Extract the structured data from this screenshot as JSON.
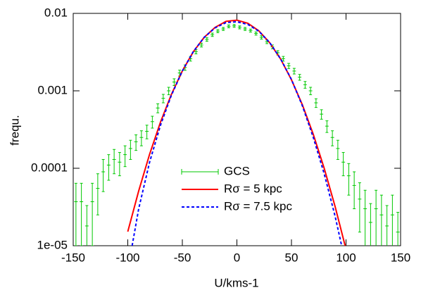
{
  "chart_data": {
    "type": "line",
    "xlabel": "U/kms-1",
    "ylabel": "frequ.",
    "xlim": [
      -150,
      150
    ],
    "xticks": [
      -150,
      -100,
      -50,
      0,
      50,
      100,
      150
    ],
    "ylim": [
      1e-05,
      0.01
    ],
    "log_y": true,
    "yticks": [
      {
        "value": 1e-05,
        "label": "1e-05"
      },
      0.0001,
      0.001,
      0.01
    ],
    "grid": false,
    "series": [
      {
        "name": "GCS",
        "color": "#00c800",
        "style": "errorbars",
        "x": [
          -147.5,
          -142.5,
          -137.5,
          -132.5,
          -127.5,
          -122.5,
          -117.5,
          -112.5,
          -107.5,
          -102.5,
          -97.5,
          -92.5,
          -87.5,
          -82.5,
          -77.5,
          -72.5,
          -67.5,
          -62.5,
          -57.5,
          -52.5,
          -47.5,
          -42.5,
          -37.5,
          -32.5,
          -27.5,
          -22.5,
          -17.5,
          -12.5,
          -7.5,
          -2.5,
          2.5,
          7.5,
          12.5,
          17.5,
          22.5,
          27.5,
          32.5,
          37.5,
          42.5,
          47.5,
          52.5,
          57.5,
          62.5,
          67.5,
          72.5,
          77.5,
          82.5,
          87.5,
          92.5,
          97.5,
          102.5,
          107.5,
          112.5,
          117.5,
          122.5,
          127.5,
          132.5,
          137.5,
          142.5,
          147.5
        ],
        "values": [
          3.7e-05,
          3.7e-05,
          1.8e-05,
          3.7e-05,
          5.5e-05,
          9e-05,
          0.00011,
          0.00013,
          0.00012,
          0.00015,
          0.00018,
          0.00022,
          0.00025,
          0.0003,
          0.0004,
          0.0006,
          0.0008,
          0.001,
          0.0013,
          0.0017,
          0.002,
          0.0026,
          0.0032,
          0.0039,
          0.0046,
          0.0053,
          0.0059,
          0.0063,
          0.0068,
          0.0069,
          0.0066,
          0.0063,
          0.006,
          0.0055,
          0.0049,
          0.0043,
          0.0037,
          0.0031,
          0.0026,
          0.0021,
          0.0018,
          0.0015,
          0.0012,
          0.001,
          0.0007,
          0.0005,
          0.00035,
          0.00025,
          0.00018,
          0.00012,
          8e-05,
          6e-05,
          4e-05,
          3e-05,
          2e-05,
          3e-05,
          2.5e-05,
          1.8e-05,
          2.5e-05,
          1.5e-05
        ],
        "errors": [
          2.7e-05,
          2.7e-05,
          1.5e-05,
          2.7e-05,
          3e-05,
          4e-05,
          4e-05,
          4.5e-05,
          4e-05,
          4.5e-05,
          5e-05,
          5e-05,
          5.5e-05,
          6e-05,
          7e-05,
          8e-05,
          0.0001,
          0.00011,
          0.00013,
          0.00015,
          0.00016,
          0.00018,
          0.0002,
          0.00022,
          0.00024,
          0.00026,
          0.00027,
          0.00028,
          0.00029,
          0.00029,
          0.00029,
          0.00028,
          0.00027,
          0.00026,
          0.00025,
          0.00023,
          0.00021,
          0.0002,
          0.00018,
          0.00016,
          0.00015,
          0.00013,
          0.00012,
          0.00011,
          9e-05,
          7e-05,
          6e-05,
          5.5e-05,
          5e-05,
          4e-05,
          3.5e-05,
          3e-05,
          2.5e-05,
          2.2e-05,
          1.5e-05,
          2.2e-05,
          2e-05,
          1.5e-05,
          2e-05,
          1.2e-05
        ]
      },
      {
        "name": "Rσ = 5 kpc",
        "color": "#ff0000",
        "style": "solid",
        "x": [
          -100,
          -90,
          -80,
          -70,
          -60,
          -50,
          -40,
          -30,
          -20,
          -10,
          0,
          10,
          20,
          30,
          40,
          50,
          60,
          70,
          80,
          90,
          100
        ],
        "values": [
          1.52e-05,
          5.1e-05,
          0.000152,
          0.000396,
          0.0009,
          0.00181,
          0.00318,
          0.0049,
          0.0066,
          0.0079,
          0.00818,
          0.00746,
          0.00597,
          0.00419,
          0.00258,
          0.00139,
          0.00066,
          0.000274,
          0.0001,
          3.2e-05,
          9e-06
        ]
      },
      {
        "name": "Rσ = 7.5 kpc",
        "color": "#0000ff",
        "style": "dashed",
        "x": [
          -96,
          -90,
          -80,
          -70,
          -60,
          -50,
          -40,
          -30,
          -20,
          -10,
          0,
          10,
          20,
          30,
          40,
          50,
          60,
          70,
          80,
          90,
          96
        ],
        "values": [
          1e-05,
          3e-05,
          0.00012,
          0.00036,
          0.00088,
          0.0018,
          0.0032,
          0.0049,
          0.0065,
          0.0076,
          0.0078,
          0.0072,
          0.0059,
          0.0042,
          0.0026,
          0.0014,
          0.00064,
          0.00025,
          8.5e-05,
          2.4e-05,
          1e-05
        ]
      }
    ]
  }
}
